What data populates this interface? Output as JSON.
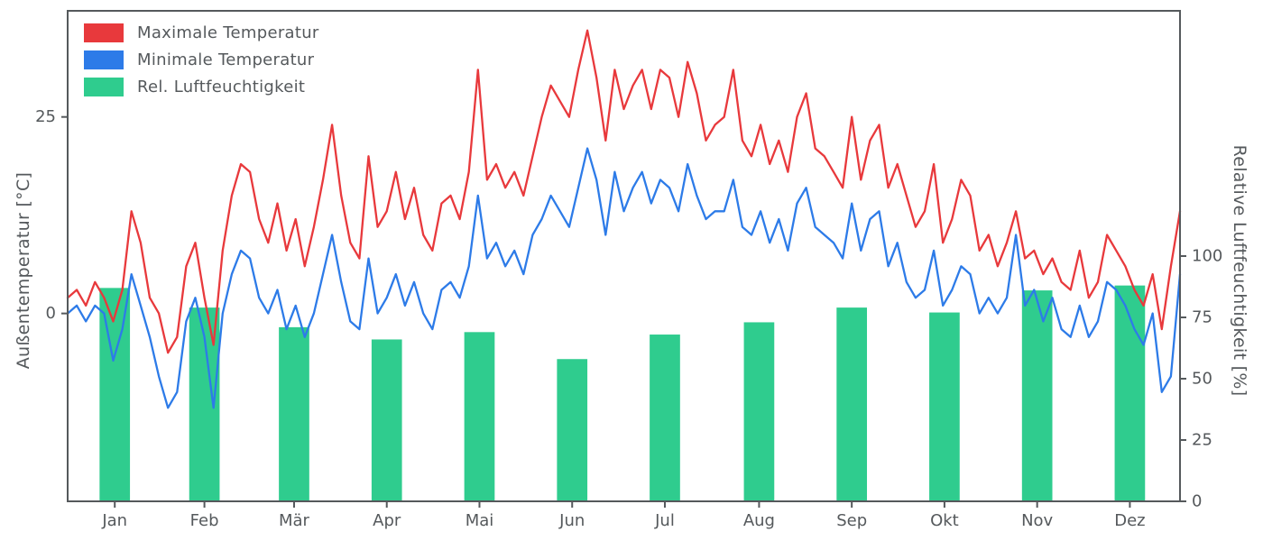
{
  "chart_data": {
    "type": "line+bar",
    "title": "",
    "left_ylabel": "Außentemperatur [°C]",
    "right_ylabel": "Relative Luftfeuchtigkeit [%]",
    "x_tick_labels": [
      "Jan",
      "Feb",
      "Mär",
      "Apr",
      "Mai",
      "Jun",
      "Jul",
      "Aug",
      "Sep",
      "Okt",
      "Nov",
      "Dez"
    ],
    "left_yticks": [
      0,
      25
    ],
    "right_yticks": [
      0,
      25,
      50,
      75,
      100
    ],
    "left_ylim": [
      -23.9,
      38.5
    ],
    "right_ylim": [
      0,
      200
    ],
    "xlim": [
      0,
      366
    ],
    "month_centers": [
      15.5,
      45,
      74.5,
      105,
      135.5,
      166,
      196.5,
      227.5,
      258,
      288.5,
      319,
      349.5
    ],
    "bar_width_days": 10,
    "grid": false,
    "legend_position": "upper left",
    "axis_color": "#55595c",
    "background_color": "#ffffff",
    "series": [
      {
        "name": "Maximale Temperatur",
        "type": "line",
        "color": "#e8393c",
        "unit": "°C",
        "x_start": 0,
        "x_step": 3,
        "values": [
          2,
          3,
          1,
          4,
          2,
          -1,
          3,
          13,
          9,
          2,
          0,
          -5,
          -3,
          6,
          9,
          2,
          -4,
          8,
          15,
          19,
          18,
          12,
          9,
          14,
          8,
          12,
          6,
          11,
          17,
          24,
          15,
          9,
          7,
          20,
          11,
          13,
          18,
          12,
          16,
          10,
          8,
          14,
          15,
          12,
          18,
          31,
          17,
          19,
          16,
          18,
          15,
          20,
          25,
          29,
          27,
          25,
          31,
          36,
          30,
          22,
          31,
          26,
          29,
          31,
          26,
          31,
          30,
          25,
          32,
          28,
          22,
          24,
          25,
          31,
          22,
          20,
          24,
          19,
          22,
          18,
          25,
          28,
          21,
          20,
          18,
          16,
          25,
          17,
          22,
          24,
          16,
          19,
          15,
          11,
          13,
          19,
          9,
          12,
          17,
          15,
          8,
          10,
          6,
          9,
          13,
          7,
          8,
          5,
          7,
          4,
          3,
          8,
          2,
          4,
          10,
          8,
          6,
          3,
          1,
          5,
          -2,
          6,
          13
        ]
      },
      {
        "name": "Minimale Temperatur",
        "type": "line",
        "color": "#2d7be8",
        "unit": "°C",
        "x_start": 0,
        "x_step": 3,
        "values": [
          0,
          1,
          -1,
          1,
          0,
          -6,
          -2,
          5,
          1,
          -3,
          -8,
          -12,
          -10,
          -1,
          2,
          -3,
          -12,
          0,
          5,
          8,
          7,
          2,
          0,
          3,
          -2,
          1,
          -3,
          0,
          5,
          10,
          4,
          -1,
          -2,
          7,
          0,
          2,
          5,
          1,
          4,
          0,
          -2,
          3,
          4,
          2,
          6,
          15,
          7,
          9,
          6,
          8,
          5,
          10,
          12,
          15,
          13,
          11,
          16,
          21,
          17,
          10,
          18,
          13,
          16,
          18,
          14,
          17,
          16,
          13,
          19,
          15,
          12,
          13,
          13,
          17,
          11,
          10,
          13,
          9,
          12,
          8,
          14,
          16,
          11,
          10,
          9,
          7,
          14,
          8,
          12,
          13,
          6,
          9,
          4,
          2,
          3,
          8,
          1,
          3,
          6,
          5,
          0,
          2,
          0,
          2,
          10,
          1,
          3,
          -1,
          2,
          -2,
          -3,
          1,
          -3,
          -1,
          4,
          3,
          1,
          -2,
          -4,
          0,
          -10,
          -8,
          5
        ]
      },
      {
        "name": "Rel. Luftfeuchtigkeit",
        "type": "bar",
        "color": "#2fcc8e",
        "unit": "%",
        "values": [
          87,
          79,
          71,
          66,
          69,
          58,
          68,
          73,
          79,
          77,
          86,
          88
        ]
      }
    ]
  }
}
